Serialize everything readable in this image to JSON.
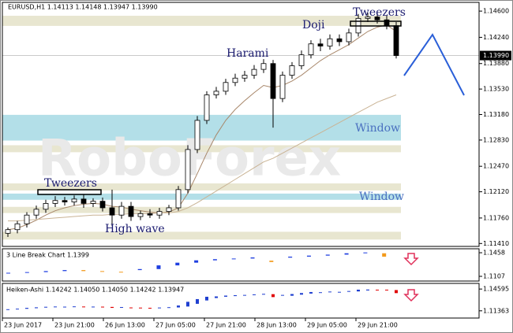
{
  "header": "EURUSD,H1  1.14113 1.14148 1.13947 1.13990",
  "watermark": "RoboForex",
  "chart_data": [
    {
      "type": "candlestick",
      "ylim": [
        1.1137,
        1.1472
      ],
      "yticks": [
        {
          "value": 1.146,
          "label": "1.14600"
        },
        {
          "value": 1.1424,
          "label": "1.14240"
        },
        {
          "value": 1.1388,
          "label": "1.13880"
        },
        {
          "value": 1.1353,
          "label": "1.13530"
        },
        {
          "value": 1.1318,
          "label": "1.13180"
        },
        {
          "value": 1.1283,
          "label": "1.12830"
        },
        {
          "value": 1.1247,
          "label": "1.12470"
        },
        {
          "value": 1.1212,
          "label": "1.12120"
        },
        {
          "value": 1.1176,
          "label": "1.11760"
        },
        {
          "value": 1.1141,
          "label": "1.11410"
        }
      ],
      "last_price": {
        "value": 1.1399,
        "label": "1.13990"
      },
      "x_labels": [
        "23 Jun 2017",
        "23 Jun 21:00",
        "26 Jun 13:00",
        "27 Jun 05:00",
        "27 Jun 21:00",
        "28 Jun 13:00",
        "29 Jun 05:00",
        "29 Jun 21:00"
      ],
      "up_color": "#ffffff",
      "down_color": "#000000",
      "open": [
        1.1155,
        1.116,
        1.1168,
        1.118,
        1.1188,
        1.1196,
        1.12,
        1.1198,
        1.1202,
        1.1196,
        1.1199,
        1.119,
        1.118,
        1.1192,
        1.1178,
        1.1182,
        1.118,
        1.1185,
        1.119,
        1.1215,
        1.127,
        1.131,
        1.1345,
        1.135,
        1.1362,
        1.1368,
        1.1372,
        1.138,
        1.1388,
        1.134,
        1.1372,
        1.1385,
        1.14,
        1.1415,
        1.1412,
        1.1422,
        1.1418,
        1.143,
        1.145,
        1.1452,
        1.1448,
        1.144
      ],
      "high": [
        1.1163,
        1.1172,
        1.1184,
        1.1193,
        1.1201,
        1.1206,
        1.1205,
        1.1207,
        1.1208,
        1.1203,
        1.1204,
        1.1215,
        1.1198,
        1.1198,
        1.1186,
        1.1188,
        1.119,
        1.1194,
        1.122,
        1.1276,
        1.1316,
        1.135,
        1.1356,
        1.1367,
        1.1374,
        1.1378,
        1.1386,
        1.1394,
        1.1393,
        1.1377,
        1.139,
        1.1406,
        1.142,
        1.1422,
        1.1428,
        1.1428,
        1.1436,
        1.1456,
        1.1458,
        1.1458,
        1.1454,
        1.1445
      ],
      "low": [
        1.115,
        1.1155,
        1.1163,
        1.1175,
        1.1183,
        1.1191,
        1.1193,
        1.1193,
        1.119,
        1.1191,
        1.1185,
        1.1165,
        1.1175,
        1.1172,
        1.1173,
        1.1176,
        1.1175,
        1.118,
        1.1186,
        1.121,
        1.1265,
        1.1305,
        1.134,
        1.1345,
        1.1357,
        1.1363,
        1.1367,
        1.1375,
        1.13,
        1.1335,
        1.1367,
        1.138,
        1.1395,
        1.1405,
        1.1407,
        1.1412,
        1.1413,
        1.1425,
        1.1445,
        1.1443,
        1.1435,
        1.1395
      ],
      "close": [
        1.116,
        1.1168,
        1.118,
        1.1188,
        1.1196,
        1.12,
        1.1198,
        1.1202,
        1.1196,
        1.1199,
        1.119,
        1.118,
        1.1192,
        1.1178,
        1.1182,
        1.118,
        1.1185,
        1.119,
        1.1215,
        1.127,
        1.131,
        1.1345,
        1.135,
        1.1362,
        1.1368,
        1.1372,
        1.138,
        1.1388,
        1.134,
        1.1372,
        1.1385,
        1.14,
        1.1415,
        1.1412,
        1.1422,
        1.1418,
        1.143,
        1.145,
        1.1452,
        1.1448,
        1.144,
        1.1399
      ],
      "moving_averages": [
        {
          "color": "#a8876a",
          "values": [
            1.116,
            1.1162,
            1.1167,
            1.1173,
            1.118,
            1.1186,
            1.119,
            1.1193,
            1.1195,
            1.1196,
            1.1195,
            1.1192,
            1.1191,
            1.1188,
            1.1186,
            1.1184,
            1.1183,
            1.1184,
            1.119,
            1.121,
            1.1237,
            1.1265,
            1.129,
            1.131,
            1.1325,
            1.1337,
            1.1348,
            1.1358,
            1.1355,
            1.1358,
            1.1364,
            1.1372,
            1.1382,
            1.1392,
            1.14,
            1.1407,
            1.1414,
            1.1423,
            1.1432,
            1.1438,
            1.1441,
            1.1432
          ]
        },
        {
          "color": "#c9b394",
          "values": [
            1.1172,
            1.1172,
            1.1173,
            1.1174,
            1.1175,
            1.1176,
            1.1177,
            1.1178,
            1.1179,
            1.118,
            1.118,
            1.1181,
            1.1181,
            1.1182,
            1.1182,
            1.1182,
            1.1183,
            1.1183,
            1.1185,
            1.119,
            1.1197,
            1.1205,
            1.1213,
            1.1221,
            1.1229,
            1.1237,
            1.1245,
            1.1253,
            1.1258,
            1.1265,
            1.1272,
            1.1279,
            1.1286,
            1.1293,
            1.13,
            1.1307,
            1.1314,
            1.1321,
            1.1328,
            1.1335,
            1.134,
            1.1345
          ]
        }
      ],
      "zones": [
        {
          "from": 1.14397,
          "to": 1.14536,
          "color": "#e8e6d0"
        },
        {
          "from": 1.12823,
          "to": 1.13176,
          "color": "#b3dfe8"
        },
        {
          "from": 1.12663,
          "to": 1.12759,
          "color": "#e8e6d0"
        },
        {
          "from": 1.12138,
          "to": 1.12235,
          "color": "#e8e6d0"
        },
        {
          "from": 1.1201,
          "to": 1.12095,
          "color": "#b3dfe8"
        },
        {
          "from": 1.11828,
          "to": 1.11913,
          "color": "#e8e6d0"
        },
        {
          "from": 1.11464,
          "to": 1.11571,
          "color": "#e8e6d0"
        }
      ],
      "annotations": [
        {
          "text": "Tweezers",
          "color": "#1a1a6e"
        },
        {
          "text": "Doji",
          "color": "#1a1a6e"
        },
        {
          "text": "Tweezers",
          "color": "#1a1a6e"
        },
        {
          "text": "Harami",
          "color": "#1a1a6e"
        },
        {
          "text": "High wave",
          "color": "#1a1a6e"
        },
        {
          "text": "Window",
          "color": "#4a70c0"
        },
        {
          "text": "Window",
          "color": "#4a70c0"
        }
      ]
    },
    {
      "type": "line-break",
      "title": "3 Line Break Chart 1.1399",
      "ylim": [
        1.1037,
        1.1517
      ],
      "yticks": [
        1.1458,
        1.1107
      ],
      "up_color": "#1f3fe0",
      "down_color": "#f39a1c",
      "open": [
        1.115,
        1.116,
        1.117,
        1.1185,
        1.12,
        1.1185,
        1.1175,
        1.12,
        1.1215,
        1.127,
        1.131,
        1.1345,
        1.1362,
        1.1372,
        1.134,
        1.1385,
        1.14,
        1.1415,
        1.143,
        1.145,
        1.145
      ],
      "close": [
        1.116,
        1.117,
        1.1185,
        1.12,
        1.1185,
        1.1175,
        1.1165,
        1.1215,
        1.127,
        1.131,
        1.1345,
        1.1362,
        1.1372,
        1.1388,
        1.132,
        1.14,
        1.1415,
        1.143,
        1.145,
        1.1462,
        1.1399
      ]
    },
    {
      "type": "heiken-ashi",
      "title": "Heiken-Ashi 1.14242 1.14050 1.14050 1.14242 1.13947",
      "ylim": [
        1.1029,
        1.1543
      ],
      "yticks": [
        {
          "value": 1.14595,
          "label": "1.14595"
        },
        {
          "value": 1.11363,
          "label": "1.11363"
        }
      ],
      "up_color": "#2040d0",
      "down_color": "#e00000",
      "open": [
        1.1157,
        1.116,
        1.1166,
        1.1175,
        1.1184,
        1.1192,
        1.1198,
        1.1199,
        1.12,
        1.1199,
        1.1198,
        1.1194,
        1.1187,
        1.1186,
        1.1184,
        1.1181,
        1.1181,
        1.1183,
        1.1186,
        1.12,
        1.124,
        1.129,
        1.1326,
        1.1345,
        1.1355,
        1.1364,
        1.137,
        1.1376,
        1.1383,
        1.1365,
        1.136,
        1.1376,
        1.1392,
        1.1406,
        1.1412,
        1.1416,
        1.1419,
        1.1424,
        1.1438,
        1.145,
        1.145,
        1.1444
      ],
      "close": [
        1.116,
        1.1168,
        1.118,
        1.1188,
        1.1196,
        1.12,
        1.1198,
        1.1202,
        1.1196,
        1.1199,
        1.119,
        1.118,
        1.1192,
        1.1178,
        1.1182,
        1.118,
        1.1185,
        1.119,
        1.1215,
        1.127,
        1.131,
        1.1345,
        1.135,
        1.1362,
        1.1368,
        1.1372,
        1.138,
        1.1388,
        1.134,
        1.1372,
        1.1385,
        1.14,
        1.1415,
        1.1412,
        1.1422,
        1.1418,
        1.143,
        1.145,
        1.1452,
        1.1448,
        1.144,
        1.1399
      ]
    }
  ]
}
